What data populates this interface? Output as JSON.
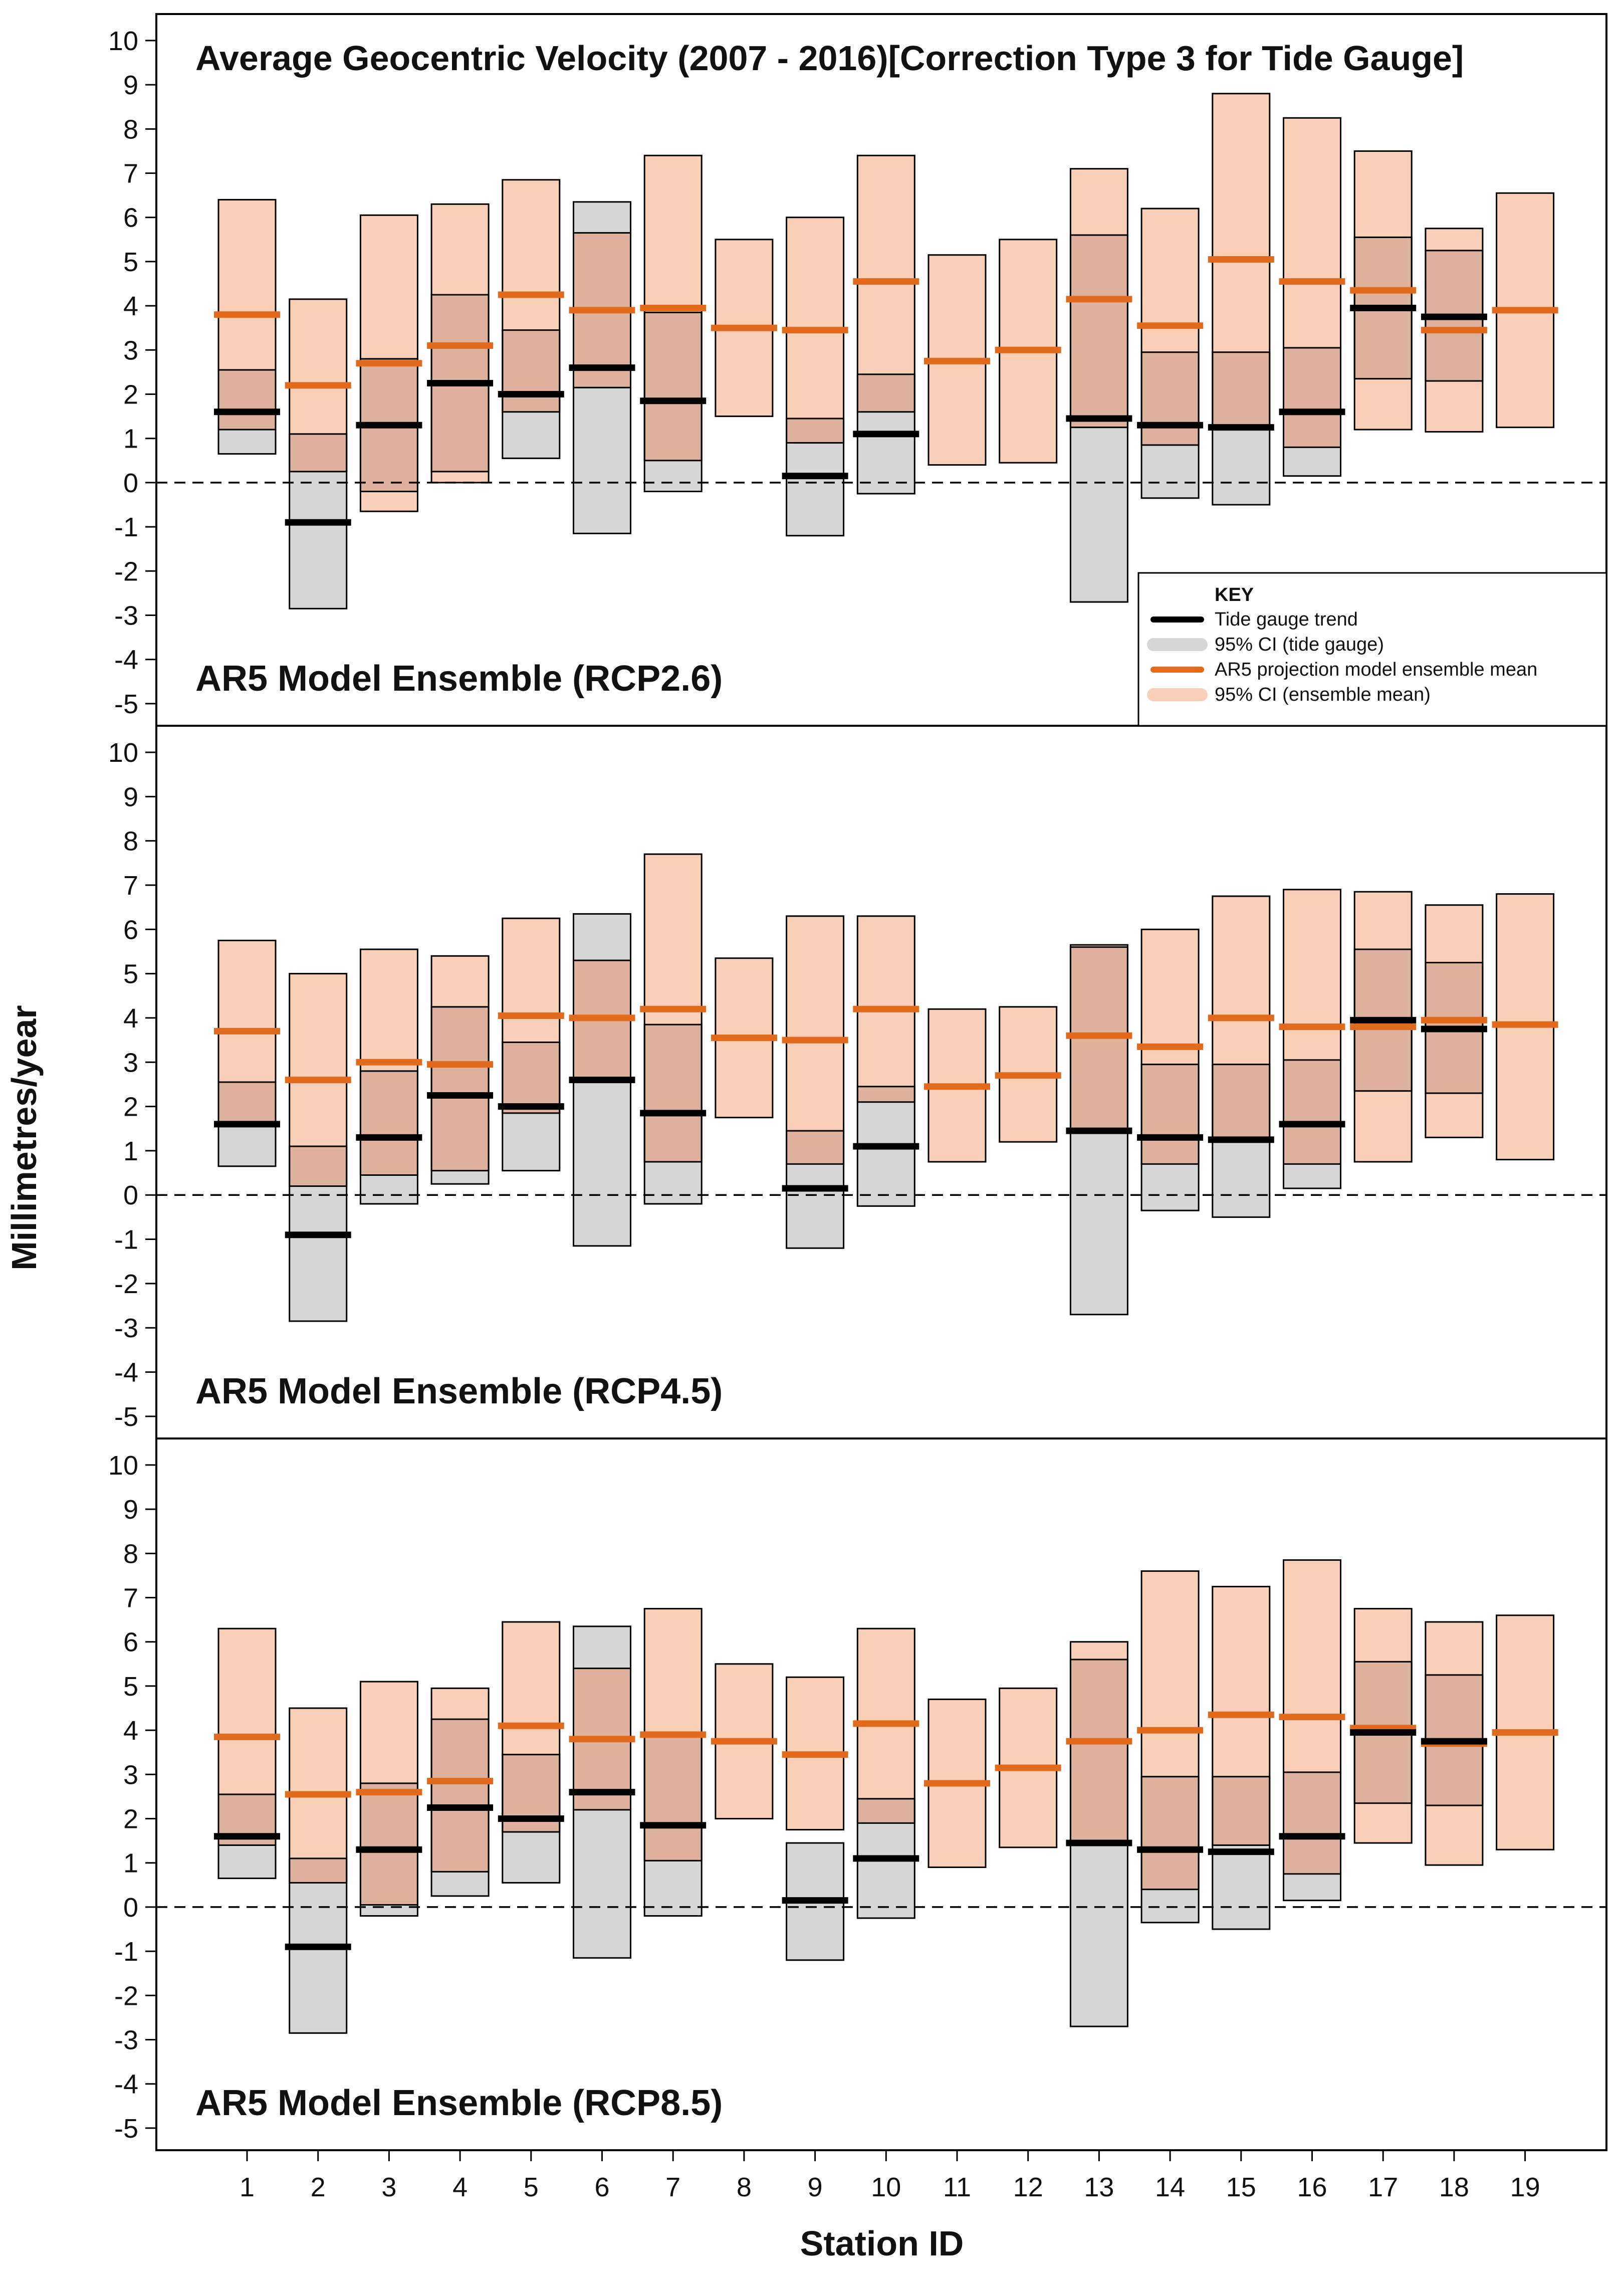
{
  "chart_data": {
    "type": "interval-bar",
    "title": "Average Geocentric Velocity (2007 - 2016)[Correction Type 3 for Tide Gauge]",
    "xlabel": "Station ID",
    "ylabel": "Millimetres/year",
    "ylim": [
      -5.5,
      10.6
    ],
    "yticks": [
      -5,
      -4,
      -3,
      -2,
      -1,
      0,
      1,
      2,
      3,
      4,
      5,
      6,
      7,
      8,
      9,
      10
    ],
    "reference_line": 0,
    "stations": [
      "1",
      "2",
      "3",
      "4",
      "5",
      "6",
      "7",
      "8",
      "9",
      "10",
      "11",
      "12",
      "13",
      "14",
      "15",
      "16",
      "17",
      "18",
      "19"
    ],
    "tide_gauge": {
      "trend": [
        1.6,
        -0.9,
        1.3,
        2.25,
        2.0,
        2.6,
        1.85,
        null,
        0.15,
        1.1,
        null,
        null,
        1.45,
        1.3,
        1.25,
        1.6,
        3.95,
        3.75,
        null
      ],
      "ci_low": [
        0.65,
        -2.85,
        -0.2,
        0.25,
        0.55,
        -1.15,
        -0.2,
        null,
        -1.2,
        -0.25,
        null,
        null,
        -2.7,
        -0.35,
        -0.5,
        0.15,
        2.35,
        2.3,
        null
      ],
      "ci_high": [
        2.55,
        1.1,
        2.8,
        4.25,
        3.45,
        6.35,
        3.85,
        null,
        1.45,
        2.45,
        null,
        null,
        5.6,
        2.95,
        2.95,
        3.05,
        5.55,
        5.25,
        null
      ]
    },
    "legend": {
      "title": "KEY",
      "items": [
        "Tide gauge trend",
        "95% CI (tide gauge)",
        "AR5 projection model ensemble mean",
        "95% CI (ensemble mean)"
      ]
    },
    "panels": [
      {
        "label": "AR5 Model Ensemble (RCP2.6)",
        "ensemble_mean": [
          3.8,
          2.2,
          2.7,
          3.1,
          4.25,
          3.9,
          3.95,
          3.5,
          3.45,
          4.55,
          2.75,
          3.0,
          4.15,
          3.55,
          5.05,
          4.55,
          4.35,
          3.45,
          3.9
        ],
        "ensemble_low": [
          1.2,
          0.25,
          -0.65,
          0.0,
          1.6,
          2.15,
          0.5,
          1.5,
          0.9,
          1.6,
          0.4,
          0.45,
          1.25,
          0.85,
          1.25,
          0.8,
          1.2,
          1.15,
          1.25
        ],
        "ensemble_high": [
          6.4,
          4.15,
          6.05,
          6.3,
          6.85,
          5.65,
          7.4,
          5.5,
          6.0,
          7.4,
          5.15,
          5.5,
          7.1,
          6.2,
          8.8,
          8.25,
          7.5,
          5.75,
          6.55
        ]
      },
      {
        "label": "AR5 Model Ensemble (RCP4.5)",
        "ensemble_mean": [
          3.7,
          2.6,
          3.0,
          2.95,
          4.05,
          4.0,
          4.2,
          3.55,
          3.5,
          4.2,
          2.45,
          2.7,
          3.6,
          3.35,
          4.0,
          3.8,
          3.8,
          3.95,
          3.85
        ],
        "ensemble_low": [
          1.6,
          0.2,
          0.45,
          0.55,
          1.85,
          2.55,
          0.75,
          1.75,
          0.7,
          2.1,
          0.75,
          1.2,
          1.4,
          0.7,
          1.25,
          0.7,
          0.75,
          1.3,
          0.8
        ],
        "ensemble_high": [
          5.75,
          5.0,
          5.55,
          5.4,
          6.25,
          5.3,
          7.7,
          5.35,
          6.3,
          6.3,
          4.2,
          4.25,
          5.65,
          6.0,
          6.75,
          6.9,
          6.85,
          6.55,
          6.8
        ]
      },
      {
        "label": "AR5 Model Ensemble (RCP8.5)",
        "ensemble_mean": [
          3.85,
          2.55,
          2.6,
          2.85,
          4.1,
          3.8,
          3.9,
          3.75,
          3.45,
          4.15,
          2.8,
          3.15,
          3.75,
          4.0,
          4.35,
          4.3,
          4.05,
          3.7,
          3.95
        ],
        "ensemble_low": [
          1.4,
          0.55,
          0.05,
          0.8,
          1.7,
          2.2,
          1.05,
          2.0,
          1.75,
          1.9,
          0.9,
          1.35,
          1.45,
          0.4,
          1.4,
          0.75,
          1.45,
          0.95,
          1.3
        ],
        "ensemble_high": [
          6.3,
          4.5,
          5.1,
          4.95,
          6.45,
          5.4,
          6.75,
          5.5,
          5.2,
          6.3,
          4.7,
          4.95,
          6.0,
          7.6,
          7.25,
          7.85,
          6.75,
          6.45,
          6.6
        ]
      }
    ]
  }
}
